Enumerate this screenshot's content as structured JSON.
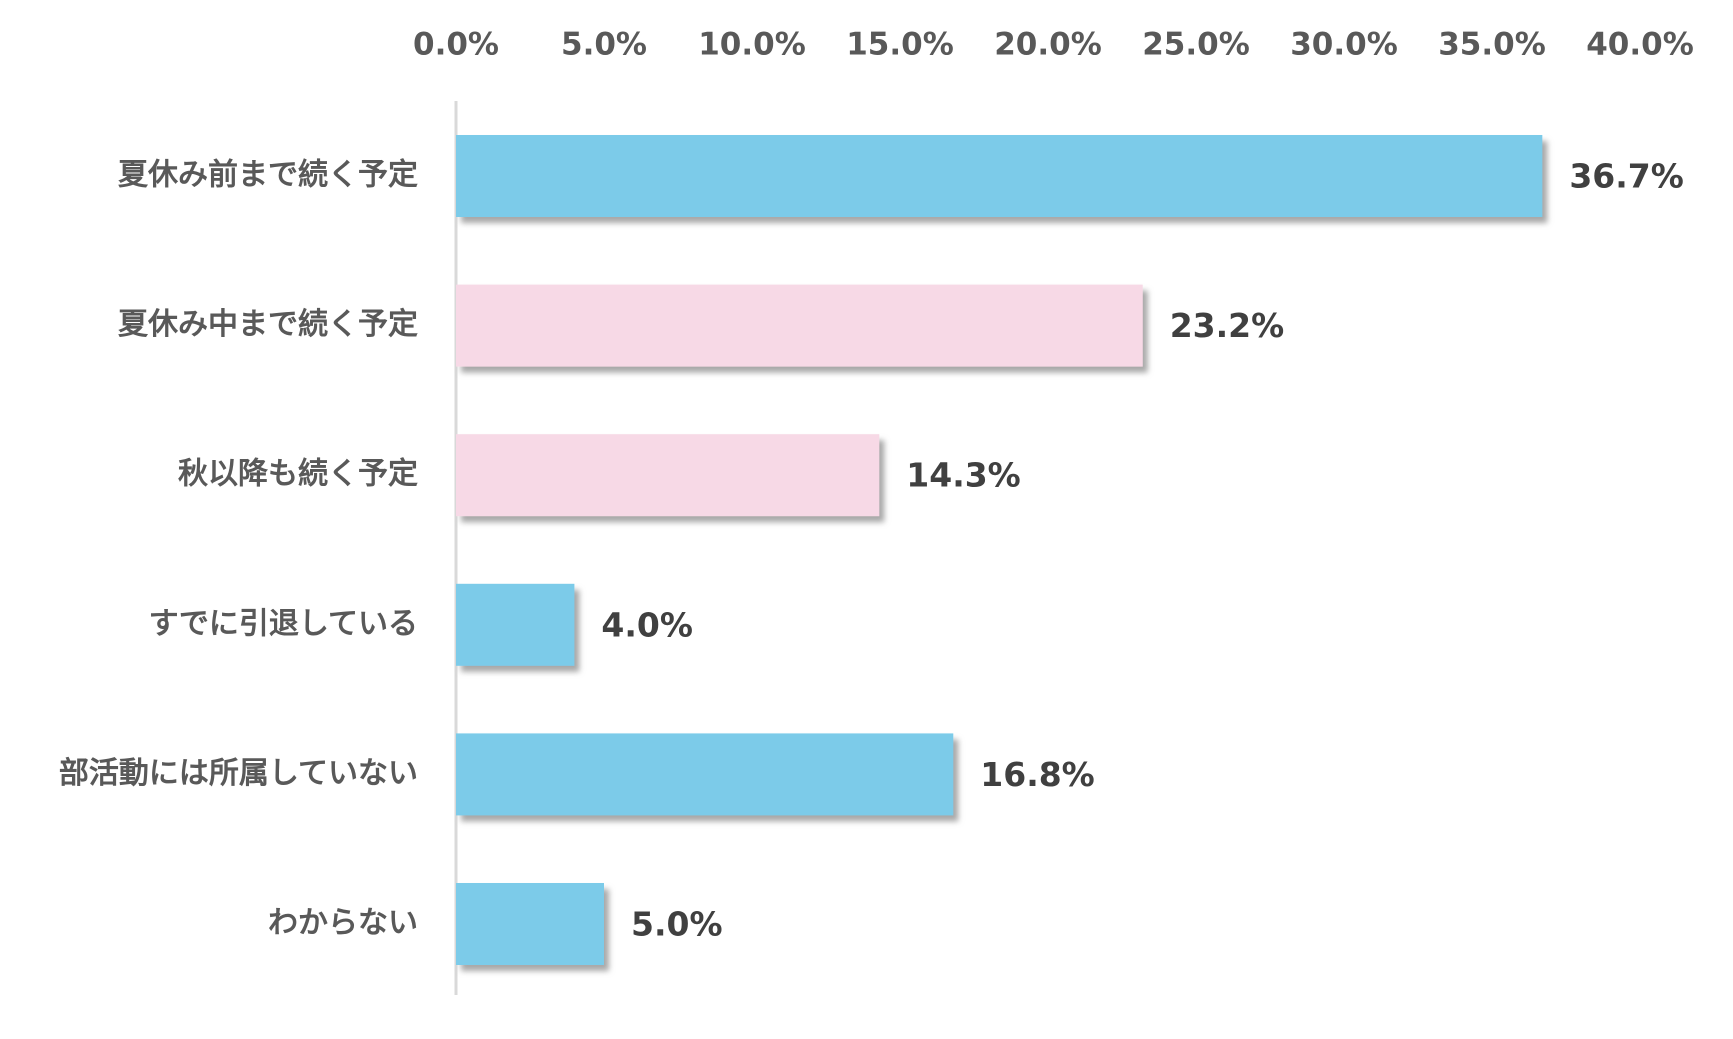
{
  "chart_data": {
    "type": "bar",
    "orientation": "horizontal",
    "title": "",
    "xlabel": "",
    "ylabel": "",
    "xlim": [
      0,
      40
    ],
    "x_ticks": [
      "0.0%",
      "5.0%",
      "10.0%",
      "15.0%",
      "20.0%",
      "25.0%",
      "30.0%",
      "35.0%",
      "40.0%"
    ],
    "x_axis_position": "top",
    "grid": false,
    "legend": "none",
    "categories": [
      "夏休み前まで続く予定",
      "夏休み中まで続く予定",
      "秋以降も続く予定",
      "すでに引退している",
      "部活動には所属していない",
      "わからない"
    ],
    "values": [
      36.7,
      23.2,
      14.3,
      4.0,
      16.8,
      5.0
    ],
    "data_labels": [
      "36.7%",
      "23.2%",
      "14.3%",
      "4.0%",
      "16.8%",
      "5.0%"
    ],
    "bar_colors": [
      "#7ccbe9",
      "#f7d9e6",
      "#f7d9e6",
      "#7ccbe9",
      "#7ccbe9",
      "#7ccbe9"
    ],
    "colors": {
      "tick_text": "#595959",
      "category_text": "#595959",
      "data_label_text": "#404040",
      "axis_line": "#d9d9d9",
      "shadow": "#9a9a9a"
    }
  }
}
